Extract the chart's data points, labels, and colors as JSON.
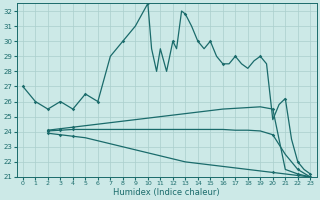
{
  "xlabel": "Humidex (Indice chaleur)",
  "ylabel": "",
  "xlim": [
    -0.5,
    23.5
  ],
  "ylim": [
    21,
    32.5
  ],
  "yticks": [
    21,
    22,
    23,
    24,
    25,
    26,
    27,
    28,
    29,
    30,
    31,
    32
  ],
  "xticks": [
    0,
    1,
    2,
    3,
    4,
    5,
    6,
    7,
    8,
    9,
    10,
    11,
    12,
    13,
    14,
    15,
    16,
    17,
    18,
    19,
    20,
    21,
    22,
    23
  ],
  "bg_color": "#cce9e7",
  "grid_color": "#aacfcd",
  "line_color": "#1a6b6b",
  "series": [
    {
      "x": [
        0,
        1,
        2,
        3,
        4,
        5,
        6,
        7,
        8,
        9,
        10,
        10.3,
        10.7,
        11,
        11.5,
        12,
        12.3,
        12.7,
        13,
        13.5,
        14,
        14.5,
        15,
        15.5,
        16,
        16.5,
        17,
        17.5,
        18,
        18.5,
        19,
        19.5,
        20,
        20.5,
        21,
        21.5,
        22,
        22.5,
        23
      ],
      "y": [
        27,
        26,
        25.5,
        26,
        25.5,
        26.5,
        26,
        29,
        30,
        31,
        32.5,
        29.5,
        28,
        29.5,
        28,
        30,
        29.5,
        32,
        31.8,
        31,
        30,
        29.5,
        30,
        29,
        28.5,
        28.5,
        29,
        28.5,
        28.2,
        28.7,
        29,
        28.5,
        24.8,
        25.8,
        26.2,
        23.5,
        22,
        21.5,
        21.2
      ],
      "has_markers": true,
      "marker_x": [
        0,
        1,
        2,
        3,
        4,
        5,
        6,
        8,
        10,
        12,
        13,
        14,
        15,
        16,
        17,
        19,
        21,
        22,
        23
      ]
    },
    {
      "x": [
        2,
        3,
        4,
        5,
        6,
        7,
        8,
        9,
        10,
        11,
        12,
        13,
        14,
        15,
        16,
        17,
        18,
        19,
        20,
        21,
        22,
        23
      ],
      "y": [
        24.1,
        24.2,
        24.3,
        24.4,
        24.5,
        24.6,
        24.7,
        24.8,
        24.9,
        25.0,
        25.1,
        25.2,
        25.3,
        25.4,
        25.5,
        25.55,
        25.6,
        25.65,
        25.5,
        21.5,
        21.2,
        21.0
      ],
      "has_markers": true,
      "marker_x": [
        2,
        3,
        4,
        20,
        22,
        23
      ]
    },
    {
      "x": [
        2,
        3,
        4,
        5,
        6,
        7,
        8,
        9,
        10,
        11,
        12,
        13,
        14,
        15,
        16,
        17,
        18,
        19,
        20,
        21,
        22,
        23
      ],
      "y": [
        24.05,
        24.1,
        24.15,
        24.15,
        24.15,
        24.15,
        24.15,
        24.15,
        24.15,
        24.15,
        24.15,
        24.15,
        24.15,
        24.15,
        24.15,
        24.1,
        24.1,
        24.05,
        23.8,
        22.5,
        21.5,
        21.0
      ],
      "has_markers": true,
      "marker_x": [
        2,
        3,
        4,
        20,
        22,
        23
      ]
    },
    {
      "x": [
        2,
        3,
        4,
        5,
        6,
        7,
        8,
        9,
        10,
        11,
        12,
        13,
        14,
        15,
        16,
        17,
        18,
        19,
        20,
        21,
        22,
        23
      ],
      "y": [
        23.9,
        23.8,
        23.7,
        23.6,
        23.4,
        23.2,
        23.0,
        22.8,
        22.6,
        22.4,
        22.2,
        22.0,
        21.9,
        21.8,
        21.7,
        21.6,
        21.5,
        21.4,
        21.3,
        21.2,
        21.1,
        21.0
      ],
      "has_markers": true,
      "marker_x": [
        2,
        3,
        4,
        20,
        22,
        23
      ]
    }
  ]
}
